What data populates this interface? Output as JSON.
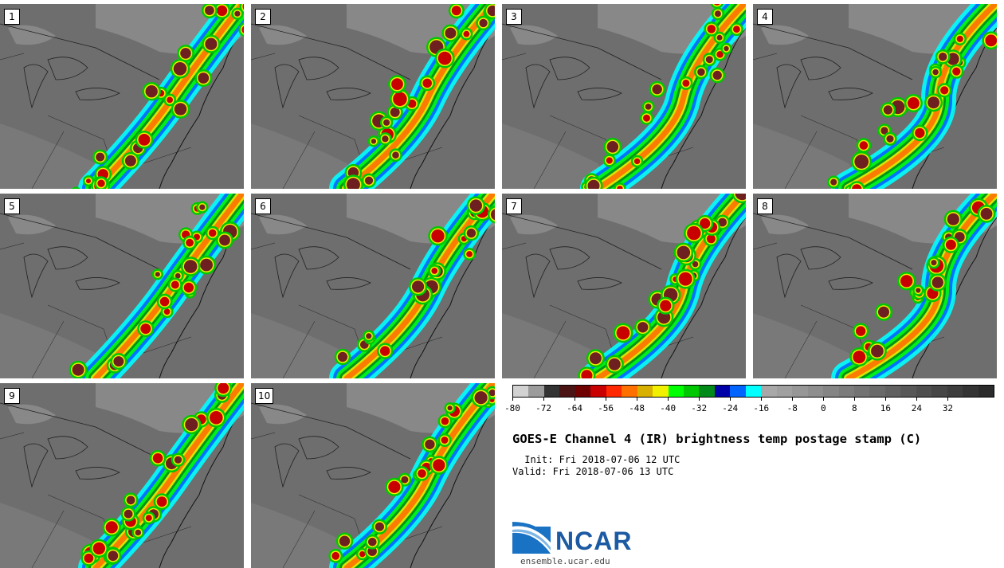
{
  "title": "GOES-E Channel 4 (IR) brightness temp postage stamp (C)",
  "init": " Init: Fri 2018-07-06 12 UTC",
  "valid": "Valid: Fri 2018-07-06 13 UTC",
  "logo_text": "NCAR",
  "site": "ensemble.ucar.edu",
  "members": [
    "1",
    "2",
    "3",
    "4",
    "5",
    "6",
    "7",
    "8",
    "9",
    "10"
  ],
  "colorbar": {
    "colors": [
      "#d2d2d2",
      "#9c9c9c",
      "#333333",
      "#4a1414",
      "#6e0000",
      "#c80000",
      "#ff2800",
      "#ff7000",
      "#d8b000",
      "#f0f000",
      "#00ff00",
      "#00c800",
      "#008a18",
      "#0000a8",
      "#0064ff",
      "#00ffff",
      "#a8a8a8",
      "#a0a0a0",
      "#979797",
      "#8e8e8e",
      "#858585",
      "#7c7c7c",
      "#737373",
      "#6a6a6a",
      "#616161",
      "#585858",
      "#4f4f4f",
      "#464646",
      "#3d3d3d",
      "#343434",
      "#2b2b2b"
    ],
    "tick_labels": [
      "-80",
      "-72",
      "-64",
      "-56",
      "-48",
      "-40",
      "-32",
      "-24",
      "-16",
      "-8",
      "0",
      "8",
      "16",
      "24",
      "32"
    ],
    "range": [
      -80,
      44
    ],
    "step": 4
  }
}
